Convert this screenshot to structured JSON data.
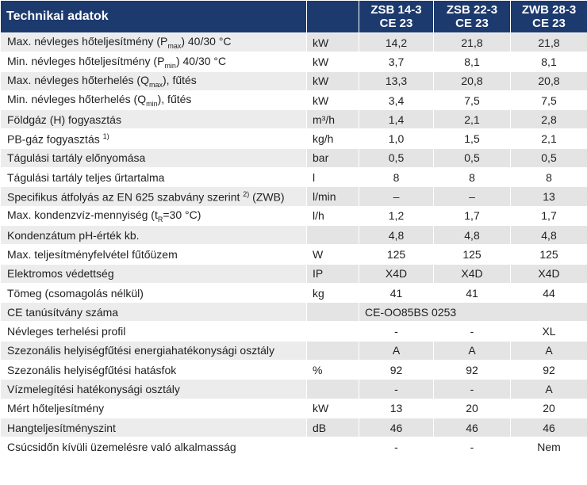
{
  "header": {
    "title": "Technikai adatok",
    "models": [
      {
        "line1": "ZSB 14-3",
        "line2": "CE 23"
      },
      {
        "line1": "ZSB 22-3",
        "line2": "CE 23"
      },
      {
        "line1": "ZWB 28-3",
        "line2": "CE 23"
      }
    ]
  },
  "rows": [
    {
      "pre": "Max. névleges hőteljesítmény (P",
      "sub": "max",
      "post": ") 40/30 °C",
      "unit": "kW",
      "values": [
        "14,2",
        "21,8",
        "21,8"
      ]
    },
    {
      "pre": "Min. névleges hőteljesítmény (P",
      "sub": "min",
      "post": ") 40/30 °C",
      "unit": "kW",
      "values": [
        "3,7",
        "8,1",
        "8,1"
      ]
    },
    {
      "pre": "Max. névleges hőterhelés (Q",
      "sub": "max",
      "post": "), fűtés",
      "unit": "kW",
      "values": [
        "13,3",
        "20,8",
        "20,8"
      ]
    },
    {
      "pre": "Min. névleges hőterhelés (Q",
      "sub": "min",
      "post": "), fűtés",
      "unit": "kW",
      "values": [
        "3,4",
        "7,5",
        "7,5"
      ]
    },
    {
      "pre": "Földgáz (H) fogyasztás",
      "unit": "m³/h",
      "values": [
        "1,4",
        "2,1",
        "2,8"
      ]
    },
    {
      "pre": "PB-gáz fogyasztás ",
      "sup": "1)",
      "unit": "kg/h",
      "values": [
        "1,0",
        "1,5",
        "2,1"
      ]
    },
    {
      "pre": "Tágulási tartály előnyomása",
      "unit": "bar",
      "values": [
        "0,5",
        "0,5",
        "0,5"
      ]
    },
    {
      "pre": "Tágulási tartály teljes űrtartalma",
      "unit": "l",
      "values": [
        "8",
        "8",
        "8"
      ]
    },
    {
      "pre": "Specifikus átfolyás az EN 625 szabvány szerint ",
      "sup": "2)",
      "post": " (ZWB)",
      "unit": "l/min",
      "values": [
        "–",
        "–",
        "13"
      ]
    },
    {
      "pre": "Max. kondenzvíz-mennyiség (t",
      "sub": "R",
      "post": "=30 °C)",
      "unit": "l/h",
      "values": [
        "1,2",
        "1,7",
        "1,7"
      ]
    },
    {
      "pre": "Kondenzátum pH-érték kb.",
      "unit": "",
      "values": [
        "4,8",
        "4,8",
        "4,8"
      ]
    },
    {
      "pre": "Max. teljesítményfelvétel fűtőüzem",
      "unit": "W",
      "values": [
        "125",
        "125",
        "125"
      ]
    },
    {
      "pre": "Elektromos védettség",
      "unit": "IP",
      "values": [
        "X4D",
        "X4D",
        "X4D"
      ]
    },
    {
      "pre": "Tömeg (csomagolás nélkül)",
      "unit": "kg",
      "values": [
        "41",
        "41",
        "44"
      ]
    },
    {
      "pre": "CE tanúsítvány száma",
      "unit": "",
      "span_value": "CE-OO85BS 0253"
    },
    {
      "pre": "Névleges terhelési profil",
      "unit": "",
      "values": [
        "-",
        "-",
        "XL"
      ]
    },
    {
      "pre": "Szezonális helyiségfűtési energiahatékonysági osztály",
      "unit": "",
      "values": [
        "A",
        "A",
        "A"
      ]
    },
    {
      "pre": "Szezonális helyiségfűtési hatásfok",
      "unit": "%",
      "values": [
        "92",
        "92",
        "92"
      ]
    },
    {
      "pre": "Vízmelegítési hatékonysági osztály",
      "unit": "",
      "values": [
        "-",
        "-",
        "A"
      ]
    },
    {
      "pre": "Mért hőteljesítmény",
      "unit": "kW",
      "values": [
        "13",
        "20",
        "20"
      ]
    },
    {
      "pre": "Hangteljesítményszint",
      "unit": "dB",
      "values": [
        "46",
        "46",
        "46"
      ]
    },
    {
      "pre": "Csúcsidőn kívüli üzemelésre való alkalmasság",
      "unit": "",
      "values": [
        "-",
        "-",
        "Nem"
      ]
    }
  ]
}
